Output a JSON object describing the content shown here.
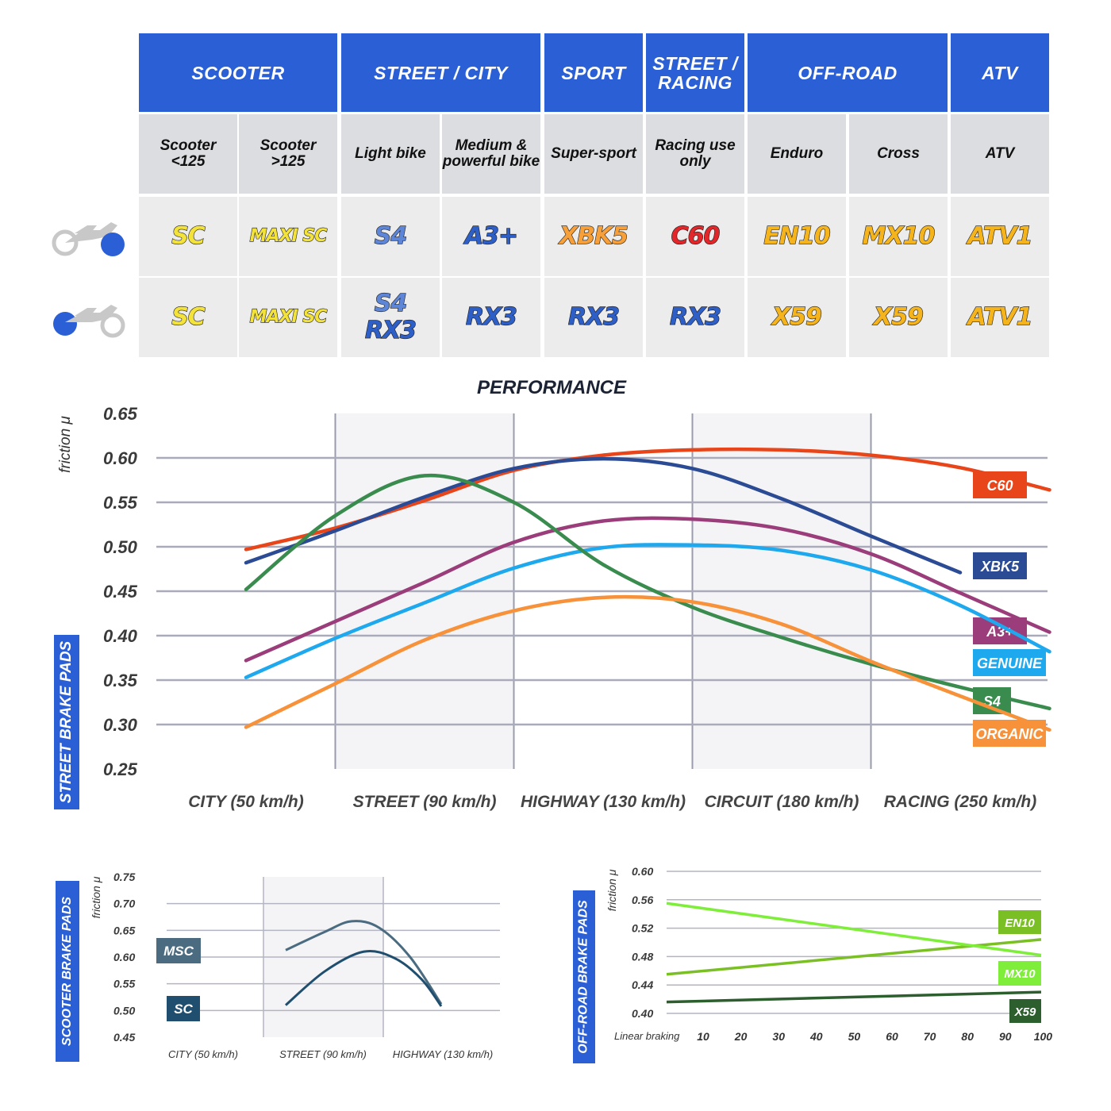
{
  "table": {
    "categories": [
      "SCOOTER",
      "STREET / CITY",
      "SPORT",
      "STREET /\nRACING",
      "OFF-ROAD",
      "ATV"
    ],
    "subcategories": [
      "Scooter\n<125",
      "Scooter\n>125",
      "Light bike",
      "Medium &\npowerful bike",
      "Super-sport",
      "Racing use\nonly",
      "Enduro",
      "Cross",
      "ATV"
    ],
    "front_pads": [
      "SC",
      "MAXI SC",
      "S4",
      "A3+",
      "XBK5",
      "C60",
      "EN10",
      "MX10",
      "ATV1"
    ],
    "rear_pads": [
      "SC",
      "MAXI SC",
      "S4 RX3",
      "RX3",
      "RX3",
      "RX3",
      "X59",
      "X59",
      "ATV1"
    ],
    "row_icons": [
      "motorbike-front-wheel-icon",
      "motorbike-rear-wheel-icon"
    ],
    "pad_colors": {
      "SC": "#f3e23a",
      "MAXI SC": "#f3e23a",
      "S4": "#5d86d8",
      "A3+": "#2e5fc7",
      "XBK5": "#f7a03a",
      "C60": "#e3262a",
      "EN10": "#f5b41c",
      "MX10": "#f5b41c",
      "ATV1": "#f5b41c",
      "RX3": "#2e5fc7",
      "X59": "#f5b41c"
    }
  },
  "performance": {
    "side_label": "STREET BRAKE PADS",
    "chart_data": {
      "type": "line",
      "title": "PERFORMANCE",
      "ylabel": "friction μ",
      "categories": [
        "CITY (50 km/h)",
        "STREET (90 km/h)",
        "HIGHWAY (130 km/h)",
        "CIRCUIT (180 km/h)",
        "RACING (250 km/h)"
      ],
      "yticks": [
        "0.65",
        "0.60",
        "0.55",
        "0.50",
        "0.45",
        "0.40",
        "0.35",
        "0.30",
        "0.25"
      ],
      "ylim": [
        0.25,
        0.65
      ],
      "shaded_categories": [
        "STREET (90 km/h)",
        "CIRCUIT (180 km/h)"
      ],
      "grid": true,
      "legend": "right",
      "series": [
        {
          "name": "C60",
          "color": "#e8461a",
          "points": [
            [
              0,
              0.497
            ],
            [
              0.5,
              0.521
            ],
            [
              1,
              0.552
            ],
            [
              1.5,
              0.586
            ],
            [
              2,
              0.603
            ],
            [
              2.5,
              0.609
            ],
            [
              3,
              0.609
            ],
            [
              3.5,
              0.603
            ],
            [
              4,
              0.589
            ],
            [
              4.5,
              0.564
            ]
          ]
        },
        {
          "name": "XBK5",
          "color": "#2b4b94",
          "points": [
            [
              0,
              0.482
            ],
            [
              0.5,
              0.518
            ],
            [
              1,
              0.556
            ],
            [
              1.5,
              0.588
            ],
            [
              2,
              0.599
            ],
            [
              2.5,
              0.588
            ],
            [
              3,
              0.554
            ],
            [
              3.5,
              0.512
            ],
            [
              4,
              0.471
            ]
          ]
        },
        {
          "name": "A3+",
          "color": "#9a3d7a",
          "points": [
            [
              0,
              0.372
            ],
            [
              0.5,
              0.416
            ],
            [
              1,
              0.46
            ],
            [
              1.5,
              0.505
            ],
            [
              2,
              0.529
            ],
            [
              2.5,
              0.531
            ],
            [
              3,
              0.52
            ],
            [
              3.5,
              0.492
            ],
            [
              4,
              0.448
            ],
            [
              4.5,
              0.404
            ]
          ]
        },
        {
          "name": "GENUINE",
          "color": "#1ea8ee",
          "points": [
            [
              0,
              0.353
            ],
            [
              0.5,
              0.397
            ],
            [
              1,
              0.437
            ],
            [
              1.5,
              0.476
            ],
            [
              2,
              0.499
            ],
            [
              2.5,
              0.502
            ],
            [
              3,
              0.496
            ],
            [
              3.5,
              0.474
            ],
            [
              4,
              0.434
            ],
            [
              4.5,
              0.382
            ]
          ]
        },
        {
          "name": "S4",
          "color": "#3a8c4e",
          "points": [
            [
              0,
              0.452
            ],
            [
              0.5,
              0.535
            ],
            [
              1,
              0.58
            ],
            [
              1.5,
              0.55
            ],
            [
              2,
              0.48
            ],
            [
              2.5,
              0.432
            ],
            [
              3,
              0.398
            ],
            [
              3.5,
              0.368
            ],
            [
              4,
              0.342
            ],
            [
              4.5,
              0.318
            ]
          ]
        },
        {
          "name": "ORGANIC",
          "color": "#f7923a",
          "points": [
            [
              0,
              0.297
            ],
            [
              0.5,
              0.346
            ],
            [
              1,
              0.395
            ],
            [
              1.5,
              0.428
            ],
            [
              2,
              0.443
            ],
            [
              2.5,
              0.438
            ],
            [
              3,
              0.413
            ],
            [
              3.5,
              0.371
            ],
            [
              4,
              0.332
            ],
            [
              4.5,
              0.294
            ]
          ]
        }
      ]
    }
  },
  "scooter": {
    "side_label": "SCOOTER BRAKE PADS",
    "chart_data": {
      "type": "line",
      "ylabel": "friction μ",
      "categories": [
        "CITY (50 km/h)",
        "STREET (90 km/h)",
        "HIGHWAY (130 km/h)"
      ],
      "yticks": [
        "0.75",
        "0.70",
        "0.65",
        "0.60",
        "0.55",
        "0.50",
        "0.45"
      ],
      "ylim": [
        0.45,
        0.75
      ],
      "shaded_categories": [
        "STREET (90 km/h)"
      ],
      "grid": true,
      "legend": "left",
      "series": [
        {
          "name": "MSC",
          "color": "#4a6b80",
          "points": [
            [
              0,
              0.613
            ],
            [
              0.5,
              0.647
            ],
            [
              0.85,
              0.667
            ],
            [
              1.2,
              0.655
            ],
            [
              1.6,
              0.6
            ],
            [
              2,
              0.512
            ]
          ]
        },
        {
          "name": "SC",
          "color": "#1f4e6e",
          "points": [
            [
              0,
              0.51
            ],
            [
              0.5,
              0.573
            ],
            [
              1,
              0.61
            ],
            [
              1.4,
              0.598
            ],
            [
              1.75,
              0.558
            ],
            [
              2,
              0.508
            ]
          ]
        }
      ]
    }
  },
  "offroad": {
    "side_label": "OFF-ROAD BRAKE PADS",
    "chart_data": {
      "type": "line",
      "ylabel": "friction μ",
      "xlabel": "Linear braking",
      "x": [
        "10",
        "20",
        "30",
        "40",
        "50",
        "60",
        "70",
        "80",
        "90",
        "100"
      ],
      "yticks": [
        "0.60",
        "0.56",
        "0.52",
        "0.48",
        "0.44",
        "0.40"
      ],
      "ylim": [
        0.4,
        0.6
      ],
      "grid": true,
      "legend": "right",
      "series": [
        {
          "name": "EN10",
          "color": "#7ac024",
          "points": [
            [
              0,
              0.455
            ],
            [
              100,
              0.504
            ]
          ]
        },
        {
          "name": "MX10",
          "color": "#7fee3a",
          "points": [
            [
              0,
              0.555
            ],
            [
              100,
              0.482
            ]
          ]
        },
        {
          "name": "X59",
          "color": "#2c5e2e",
          "points": [
            [
              0,
              0.416
            ],
            [
              100,
              0.43
            ]
          ]
        }
      ]
    }
  }
}
